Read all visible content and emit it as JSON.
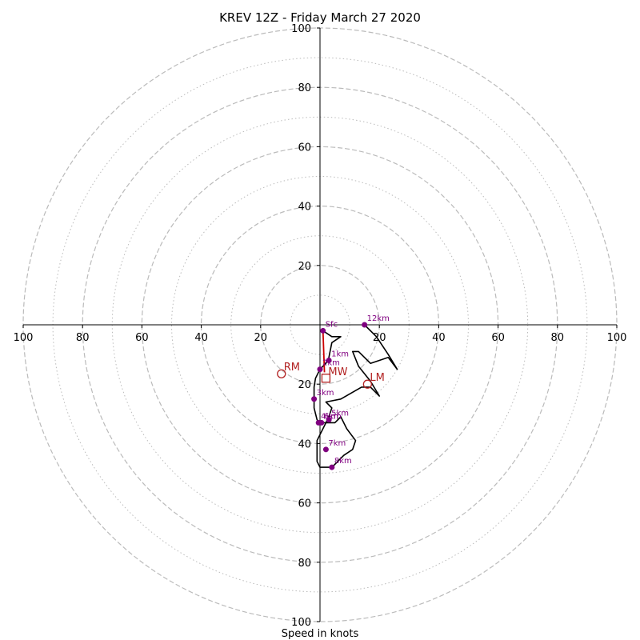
{
  "chart_data": {
    "type": "hodograph",
    "title": "KREV 12Z - Friday March 27 2020",
    "xlabel": "Speed in knots",
    "axis_range": [
      -100,
      100
    ],
    "tick_labels_x": [
      "100",
      "80",
      "60",
      "40",
      "20",
      "20",
      "40",
      "60",
      "80",
      "100"
    ],
    "tick_values_x": [
      -100,
      -80,
      -60,
      -40,
      -20,
      20,
      40,
      60,
      80,
      100
    ],
    "tick_labels_y": [
      "100",
      "80",
      "60",
      "40",
      "20",
      "20",
      "40",
      "60",
      "80",
      "100"
    ],
    "tick_values_y": [
      100,
      80,
      60,
      40,
      20,
      -20,
      -40,
      -60,
      -80,
      -100
    ],
    "rings_dashed": [
      20,
      40,
      60,
      80,
      100
    ],
    "rings_dotted": [
      10,
      30,
      50,
      70,
      90
    ],
    "grid": true,
    "colors": {
      "hodograph": "#000000",
      "height_markers": "#800080",
      "storm_motion": "#b22222",
      "shear_line": "#cc0000",
      "grid": "#bbbbbb"
    },
    "hodograph_trace": [
      [
        1,
        -2
      ],
      [
        4,
        -4
      ],
      [
        7,
        -4
      ],
      [
        4,
        -6
      ],
      [
        3,
        -11
      ],
      [
        2,
        -13
      ],
      [
        0,
        -15
      ],
      [
        -1.5,
        -18
      ],
      [
        -2,
        -21
      ],
      [
        -2,
        -25
      ],
      [
        -2,
        -28
      ],
      [
        -1,
        -32
      ],
      [
        0,
        -33
      ],
      [
        3,
        -33
      ],
      [
        5,
        -33
      ],
      [
        7,
        -31
      ],
      [
        9,
        -35
      ],
      [
        12,
        -39
      ],
      [
        11,
        -42
      ],
      [
        8,
        -44
      ],
      [
        5,
        -47
      ],
      [
        4,
        -48
      ],
      [
        0,
        -48
      ],
      [
        -1,
        -46
      ],
      [
        -1,
        -39
      ],
      [
        1,
        -35
      ],
      [
        3,
        -31
      ],
      [
        4,
        -28
      ],
      [
        2,
        -26
      ],
      [
        7,
        -25
      ],
      [
        14,
        -21
      ],
      [
        17,
        -21
      ],
      [
        20,
        -24
      ],
      [
        17,
        -19
      ],
      [
        13,
        -14
      ],
      [
        11,
        -9
      ],
      [
        13,
        -9
      ],
      [
        17,
        -13
      ],
      [
        23,
        -11
      ],
      [
        26,
        -15
      ],
      [
        23,
        -10
      ],
      [
        19,
        -4
      ],
      [
        15,
        0
      ]
    ],
    "height_points": [
      {
        "label": "Sfc",
        "u": 1,
        "v": -2
      },
      {
        "label": "1km",
        "u": 3,
        "v": -12
      },
      {
        "label": "2km",
        "u": 0,
        "v": -15
      },
      {
        "label": "3km",
        "u": -2,
        "v": -25
      },
      {
        "label": "4km",
        "u": -0.5,
        "v": -33
      },
      {
        "label": "5km",
        "u": 3,
        "v": -32
      },
      {
        "label": "6km",
        "u": 0.5,
        "v": -33
      },
      {
        "label": "7km",
        "u": 2,
        "v": -42
      },
      {
        "label": "8km",
        "u": 4,
        "v": -48
      },
      {
        "label": "12km",
        "u": 15,
        "v": 0
      }
    ],
    "storm_motions": [
      {
        "label": "RM",
        "u": -13,
        "v": -16.5,
        "marker": "circle"
      },
      {
        "label": "LM",
        "u": 16,
        "v": -20,
        "marker": "circle"
      },
      {
        "label": "MW",
        "u": 2,
        "v": -18,
        "marker": "square"
      }
    ],
    "shear_vector": {
      "from": [
        1,
        -2
      ],
      "to": [
        1.5,
        -16
      ]
    }
  }
}
